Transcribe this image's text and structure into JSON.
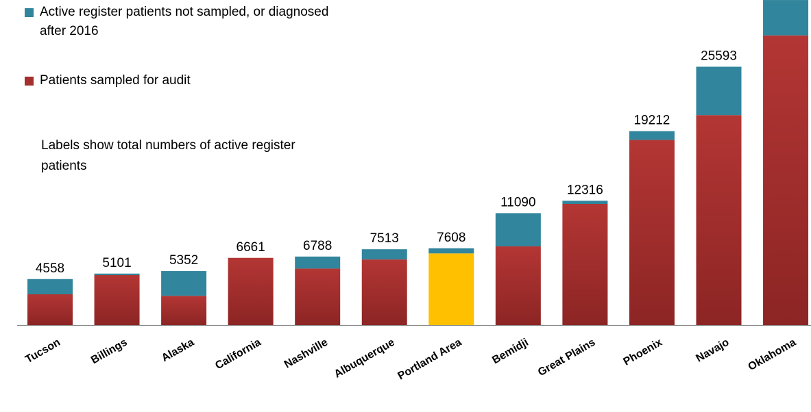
{
  "chart_data": {
    "type": "stacked-bar",
    "annotation": "Labels show total numbers of active register patients",
    "categories": [
      "Tucson",
      "Billings",
      "Alaska",
      "California",
      "Nashville",
      "Albuquerque",
      "Portland Area",
      "Bemidji",
      "Great Plains",
      "Phoenix",
      "Navajo",
      "Oklahoma"
    ],
    "series": [
      {
        "name": "Patients sampled for audit",
        "color": "#a52f2e",
        "colors": [
          "#a52f2e",
          "#a52f2e",
          "#a52f2e",
          "#a52f2e",
          "#a52f2e",
          "#a52f2e",
          "#ffc000",
          "#a52f2e",
          "#a52f2e",
          "#a52f2e",
          "#a52f2e",
          "#a52f2e"
        ],
        "values": [
          3050,
          4950,
          2900,
          6661,
          5600,
          6500,
          7100,
          7800,
          12000,
          18350,
          20800,
          28700
        ]
      },
      {
        "name": "Active register patients not sampled, or diagnosed after 2016",
        "color": "#31859c",
        "values": [
          1508,
          151,
          2452,
          0,
          1188,
          1013,
          508,
          3290,
          316,
          862,
          4793,
          3500
        ]
      }
    ],
    "totals": [
      4558,
      5101,
      5352,
      6661,
      6788,
      7513,
      7608,
      11090,
      12316,
      19212,
      25593,
      null
    ],
    "ylim": [
      0,
      32000
    ]
  }
}
